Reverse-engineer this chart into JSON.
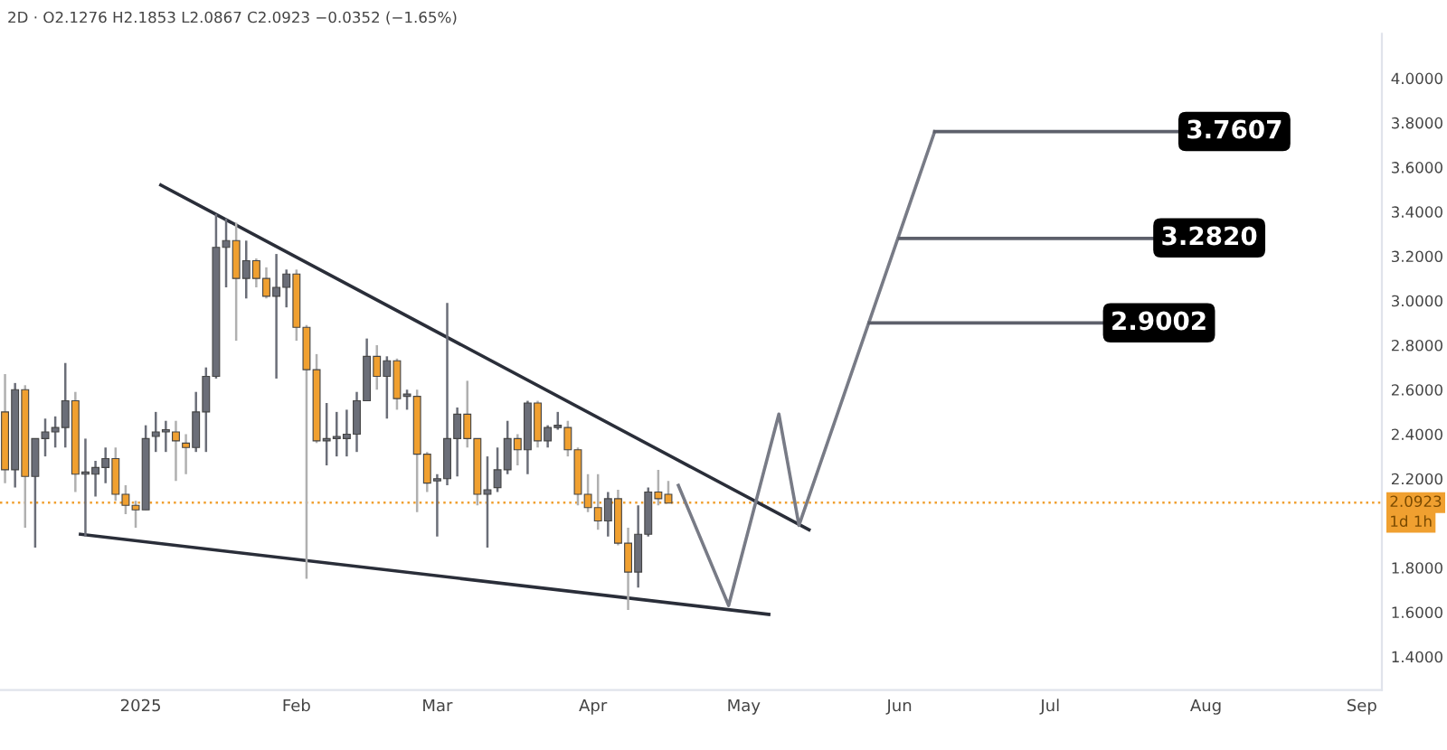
{
  "chart_data": {
    "type": "candlestick",
    "title": "2D · O2.1276 H2.1853 L2.0867 C2.0923 −0.0352 (−1.65%)",
    "x": [
      "2024-12-05",
      "2024-12-07",
      "2024-12-09",
      "2024-12-11",
      "2024-12-13",
      "2024-12-15",
      "2024-12-17",
      "2024-12-19",
      "2024-12-21",
      "2024-12-23",
      "2024-12-25",
      "2024-12-27",
      "2024-12-29",
      "2024-12-31",
      "2025-01-02",
      "2025-01-04",
      "2025-01-06",
      "2025-01-08",
      "2025-01-10",
      "2025-01-12",
      "2025-01-14",
      "2025-01-16",
      "2025-01-18",
      "2025-01-20",
      "2025-01-22",
      "2025-01-24",
      "2025-01-26",
      "2025-01-28",
      "2025-01-30",
      "2025-02-01",
      "2025-02-03",
      "2025-02-05",
      "2025-02-07",
      "2025-02-09",
      "2025-02-11",
      "2025-02-13",
      "2025-02-15",
      "2025-02-17",
      "2025-02-19",
      "2025-02-21",
      "2025-02-23",
      "2025-02-25",
      "2025-02-27",
      "2025-03-01",
      "2025-03-03",
      "2025-03-05",
      "2025-03-07",
      "2025-03-09",
      "2025-03-11",
      "2025-03-13",
      "2025-03-15",
      "2025-03-17",
      "2025-03-19",
      "2025-03-21",
      "2025-03-23",
      "2025-03-25",
      "2025-03-27",
      "2025-03-29",
      "2025-03-31",
      "2025-04-02",
      "2025-04-04",
      "2025-04-06",
      "2025-04-08",
      "2025-04-10",
      "2025-04-12",
      "2025-04-14",
      "2025-04-16"
    ],
    "ohlc": [
      [
        2.5,
        2.67,
        2.18,
        2.24
      ],
      [
        2.24,
        2.63,
        2.16,
        2.6
      ],
      [
        2.6,
        2.62,
        1.98,
        2.21
      ],
      [
        2.21,
        2.38,
        1.89,
        2.38
      ],
      [
        2.38,
        2.47,
        2.3,
        2.41
      ],
      [
        2.41,
        2.48,
        2.34,
        2.43
      ],
      [
        2.43,
        2.72,
        2.34,
        2.55
      ],
      [
        2.55,
        2.59,
        2.14,
        2.22
      ],
      [
        2.22,
        2.38,
        1.94,
        2.23
      ],
      [
        2.22,
        2.28,
        2.12,
        2.25
      ],
      [
        2.25,
        2.34,
        2.18,
        2.29
      ],
      [
        2.29,
        2.34,
        2.1,
        2.13
      ],
      [
        2.13,
        2.17,
        2.04,
        2.08
      ],
      [
        2.08,
        2.1,
        1.98,
        2.06
      ],
      [
        2.06,
        2.44,
        2.06,
        2.38
      ],
      [
        2.39,
        2.5,
        2.32,
        2.41
      ],
      [
        2.41,
        2.46,
        2.32,
        2.42
      ],
      [
        2.41,
        2.46,
        2.19,
        2.37
      ],
      [
        2.36,
        2.4,
        2.22,
        2.34
      ],
      [
        2.34,
        2.59,
        2.32,
        2.5
      ],
      [
        2.5,
        2.7,
        2.32,
        2.66
      ],
      [
        2.66,
        3.39,
        2.65,
        3.24
      ],
      [
        3.24,
        3.37,
        3.06,
        3.27
      ],
      [
        3.27,
        3.35,
        2.82,
        3.1
      ],
      [
        3.1,
        3.27,
        3.01,
        3.18
      ],
      [
        3.18,
        3.19,
        3.06,
        3.1
      ],
      [
        3.1,
        3.15,
        3.01,
        3.02
      ],
      [
        3.02,
        3.21,
        2.65,
        3.06
      ],
      [
        3.06,
        3.14,
        2.97,
        3.12
      ],
      [
        3.12,
        3.14,
        2.82,
        2.88
      ],
      [
        2.88,
        2.89,
        1.75,
        2.69
      ],
      [
        2.69,
        2.76,
        2.36,
        2.37
      ],
      [
        2.37,
        2.54,
        2.26,
        2.38
      ],
      [
        2.38,
        2.5,
        2.3,
        2.39
      ],
      [
        2.38,
        2.51,
        2.3,
        2.4
      ],
      [
        2.4,
        2.59,
        2.32,
        2.55
      ],
      [
        2.55,
        2.83,
        2.55,
        2.75
      ],
      [
        2.75,
        2.8,
        2.6,
        2.66
      ],
      [
        2.66,
        2.75,
        2.47,
        2.73
      ],
      [
        2.73,
        2.74,
        2.51,
        2.56
      ],
      [
        2.57,
        2.6,
        2.51,
        2.58
      ],
      [
        2.57,
        2.6,
        2.05,
        2.31
      ],
      [
        2.31,
        2.32,
        2.14,
        2.18
      ],
      [
        2.19,
        2.22,
        1.94,
        2.2
      ],
      [
        2.2,
        2.99,
        2.17,
        2.38
      ],
      [
        2.38,
        2.52,
        2.21,
        2.49
      ],
      [
        2.49,
        2.64,
        2.34,
        2.38
      ],
      [
        2.38,
        2.38,
        2.08,
        2.13
      ],
      [
        2.13,
        2.3,
        1.89,
        2.15
      ],
      [
        2.16,
        2.34,
        2.14,
        2.24
      ],
      [
        2.24,
        2.46,
        2.22,
        2.38
      ],
      [
        2.38,
        2.4,
        2.26,
        2.33
      ],
      [
        2.33,
        2.55,
        2.22,
        2.54
      ],
      [
        2.54,
        2.55,
        2.34,
        2.37
      ],
      [
        2.37,
        2.44,
        2.34,
        2.43
      ],
      [
        2.43,
        2.5,
        2.42,
        2.44
      ],
      [
        2.43,
        2.46,
        2.3,
        2.33
      ],
      [
        2.33,
        2.34,
        2.08,
        2.13
      ],
      [
        2.13,
        2.22,
        2.05,
        2.07
      ],
      [
        2.07,
        2.22,
        1.97,
        2.01
      ],
      [
        2.01,
        2.14,
        1.94,
        2.11
      ],
      [
        2.11,
        2.15,
        1.9,
        1.91
      ],
      [
        1.91,
        1.98,
        1.61,
        1.78
      ],
      [
        1.78,
        2.08,
        1.71,
        1.95
      ],
      [
        1.95,
        2.16,
        1.94,
        2.14
      ],
      [
        2.14,
        2.24,
        2.08,
        2.11
      ],
      [
        2.13,
        2.19,
        2.09,
        2.09
      ]
    ],
    "colors": [
      "#f0a030",
      "#6b6e78",
      "#f0a030",
      "#6b6e78",
      "#6b6e78",
      "#6b6e78",
      "#6b6e78",
      "#f0a030",
      "#6b6e78",
      "#6b6e78",
      "#6b6e78",
      "#f0a030",
      "#f0a030",
      "#f0a030",
      "#6b6e78",
      "#6b6e78",
      "#6b6e78",
      "#f0a030",
      "#f0a030",
      "#6b6e78",
      "#6b6e78",
      "#6b6e78",
      "#6b6e78",
      "#f0a030",
      "#6b6e78",
      "#f0a030",
      "#f0a030",
      "#6b6e78",
      "#6b6e78",
      "#f0a030",
      "#f0a030",
      "#f0a030",
      "#6b6e78",
      "#6b6e78",
      "#6b6e78",
      "#6b6e78",
      "#6b6e78",
      "#f0a030",
      "#6b6e78",
      "#f0a030",
      "#6b6e78",
      "#f0a030",
      "#f0a030",
      "#6b6e78",
      "#6b6e78",
      "#6b6e78",
      "#f0a030",
      "#f0a030",
      "#6b6e78",
      "#6b6e78",
      "#6b6e78",
      "#f0a030",
      "#6b6e78",
      "#f0a030",
      "#6b6e78",
      "#6b6e78",
      "#f0a030",
      "#f0a030",
      "#f0a030",
      "#f0a030",
      "#6b6e78",
      "#f0a030",
      "#f0a030",
      "#6b6e78",
      "#6b6e78",
      "#f0a030",
      "#f0a030"
    ],
    "series": [
      {
        "type": "line",
        "color": "#2a2e39",
        "x": [
          "2025-01-05",
          "2025-05-14"
        ],
        "values": [
          3.52,
          1.97
        ]
      },
      {
        "type": "line",
        "color": "#2a2e39",
        "x": [
          "2024-12-20",
          "2025-05-06"
        ],
        "values": [
          1.95,
          1.59
        ]
      },
      {
        "type": "line",
        "color": "#787b86",
        "x": [
          "2025-04-18",
          "2025-04-28",
          "2025-05-08",
          "2025-05-12",
          "2025-06-08"
        ],
        "values": [
          2.17,
          1.63,
          2.49,
          1.99,
          3.76
        ]
      },
      {
        "type": "line",
        "color": "#5d606b",
        "x": [
          "2025-05-26",
          "2025-07-12"
        ],
        "values": [
          2.9,
          2.9
        ]
      },
      {
        "type": "line",
        "color": "#5d606b",
        "x": [
          "2025-06-01",
          "2025-07-22"
        ],
        "values": [
          3.28,
          3.28
        ]
      },
      {
        "type": "line",
        "color": "#5d606b",
        "x": [
          "2025-06-08",
          "2025-07-27"
        ],
        "values": [
          3.76,
          3.76
        ]
      }
    ],
    "annotations": [
      {
        "text": "2.9002",
        "x": "2025-07-12",
        "y": 2.9002
      },
      {
        "text": "3.2820",
        "x": "2025-07-22",
        "y": 3.282
      },
      {
        "text": "3.7607",
        "x": "2025-07-27",
        "y": 3.7607
      },
      {
        "text": "1d 1h",
        "x": "2025-09-05",
        "y": 2.0923
      }
    ],
    "ref_lines": [
      {
        "axis": "y",
        "value": 2.0923,
        "label": "2.0923",
        "color": "#f0a030",
        "line_style": "dotted"
      }
    ],
    "xlim": [
      "2024-12-04",
      "2025-09-05"
    ],
    "xticks": [
      {
        "value": "2025-01-01",
        "label": "2025"
      },
      {
        "value": "2025-02-01",
        "label": "Feb"
      },
      {
        "value": "2025-03-01",
        "label": "Mar"
      },
      {
        "value": "2025-04-01",
        "label": "Apr"
      },
      {
        "value": "2025-05-01",
        "label": "May"
      },
      {
        "value": "2025-06-01",
        "label": "Jun"
      },
      {
        "value": "2025-07-01",
        "label": "Jul"
      },
      {
        "value": "2025-08-01",
        "label": "Aug"
      },
      {
        "value": "2025-09-01",
        "label": "Sep"
      }
    ],
    "ylim": [
      1.25,
      4.2
    ],
    "yticks": [
      {
        "value": 1.4,
        "label": "1.4000"
      },
      {
        "value": 1.6,
        "label": "1.6000"
      },
      {
        "value": 1.8,
        "label": "1.8000"
      },
      {
        "value": 2.2,
        "label": "2.2000"
      },
      {
        "value": 2.4,
        "label": "2.4000"
      },
      {
        "value": 2.6,
        "label": "2.6000"
      },
      {
        "value": 2.8,
        "label": "2.8000"
      },
      {
        "value": 3.0,
        "label": "3.0000"
      },
      {
        "value": 3.2,
        "label": "3.2000"
      },
      {
        "value": 3.4,
        "label": "3.4000"
      },
      {
        "value": 3.6,
        "label": "3.6000"
      },
      {
        "value": 3.8,
        "label": "3.8000"
      },
      {
        "value": 4.0,
        "label": "4.0000"
      }
    ],
    "grid": false,
    "legend": false
  }
}
